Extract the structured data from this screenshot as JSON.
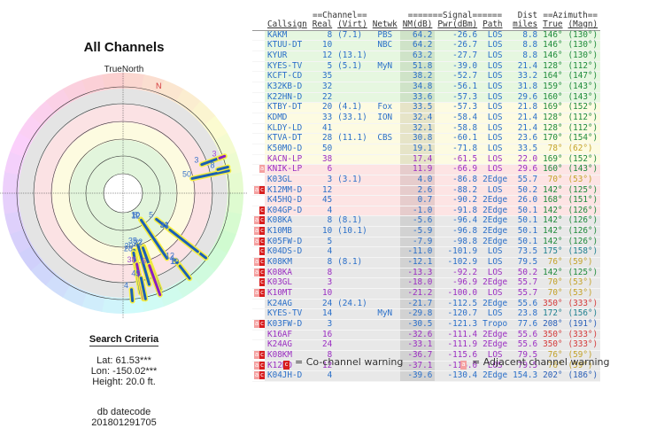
{
  "left": {
    "title": "All Channels",
    "north_label": "TrueNorth",
    "compass_n": "N",
    "criteria_title": "Search Criteria",
    "lat": "Lat: 61.53***",
    "lon": "Lon: -150.02***",
    "height": "Height: 20.0 ft.",
    "datecode_label": "db datecode",
    "datecode": "201801291705"
  },
  "table": {
    "group_headers": {
      "channel": "==Channel==",
      "signal": "=======Signal======",
      "dist": "Dist",
      "azimuth": "==Azimuth=="
    },
    "columns": [
      "Callsign",
      "Real",
      "(Virt)",
      "Netwk",
      "NM(dB)",
      "Pwr(dBm)",
      "Path",
      "miles",
      "True",
      "(Magn)"
    ],
    "rows": [
      {
        "warn": "",
        "band": "green",
        "tc": "blue",
        "callsign": "KAKM",
        "real": "8",
        "virt": "(7.1)",
        "netwk": "PBS",
        "nm": "64.2",
        "pwr": "-26.6",
        "path": "LOS",
        "dist": "8.8",
        "true": "146°",
        "magn": "(130°)",
        "azc": "az-green"
      },
      {
        "warn": "",
        "band": "green",
        "tc": "blue",
        "callsign": "KTUU-DT",
        "real": "10",
        "virt": "",
        "netwk": "NBC",
        "nm": "64.2",
        "pwr": "-26.7",
        "path": "LOS",
        "dist": "8.8",
        "true": "146°",
        "magn": "(130°)",
        "azc": "az-green"
      },
      {
        "warn": "",
        "band": "green",
        "tc": "blue",
        "callsign": "KYUR",
        "real": "12",
        "virt": "(13.1)",
        "netwk": "",
        "nm": "63.2",
        "pwr": "-27.7",
        "path": "LOS",
        "dist": "8.8",
        "true": "146°",
        "magn": "(130°)",
        "azc": "az-green"
      },
      {
        "warn": "",
        "band": "green",
        "tc": "blue",
        "callsign": "KYES-TV",
        "real": "5",
        "virt": "(5.1)",
        "netwk": "MyN",
        "nm": "51.8",
        "pwr": "-39.0",
        "path": "LOS",
        "dist": "21.4",
        "true": "128°",
        "magn": "(112°)",
        "azc": "az-green"
      },
      {
        "warn": "",
        "band": "green",
        "tc": "blue",
        "callsign": "KCFT-CD",
        "real": "35",
        "virt": "",
        "netwk": "",
        "nm": "38.2",
        "pwr": "-52.7",
        "path": "LOS",
        "dist": "33.2",
        "true": "164°",
        "magn": "(147°)",
        "azc": "az-green"
      },
      {
        "warn": "",
        "band": "green",
        "tc": "blue",
        "callsign": "K32KB-D",
        "real": "32",
        "virt": "",
        "netwk": "",
        "nm": "34.8",
        "pwr": "-56.1",
        "path": "LOS",
        "dist": "31.8",
        "true": "159°",
        "magn": "(143°)",
        "azc": "az-green"
      },
      {
        "warn": "",
        "band": "green",
        "tc": "blue",
        "callsign": "K22HN-D",
        "real": "22",
        "virt": "",
        "netwk": "",
        "nm": "33.6",
        "pwr": "-57.3",
        "path": "LOS",
        "dist": "29.6",
        "true": "160°",
        "magn": "(143°)",
        "azc": "az-green"
      },
      {
        "warn": "",
        "band": "yellow",
        "tc": "blue",
        "callsign": "KTBY-DT",
        "real": "20",
        "virt": "(4.1)",
        "netwk": "Fox",
        "nm": "33.5",
        "pwr": "-57.3",
        "path": "LOS",
        "dist": "21.8",
        "true": "169°",
        "magn": "(152°)",
        "azc": "az-green"
      },
      {
        "warn": "",
        "band": "yellow",
        "tc": "blue",
        "callsign": "KDMD",
        "real": "33",
        "virt": "(33.1)",
        "netwk": "ION",
        "nm": "32.4",
        "pwr": "-58.4",
        "path": "LOS",
        "dist": "21.4",
        "true": "128°",
        "magn": "(112°)",
        "azc": "az-green"
      },
      {
        "warn": "",
        "band": "yellow",
        "tc": "blue",
        "callsign": "KLDY-LD",
        "real": "41",
        "virt": "",
        "netwk": "",
        "nm": "32.1",
        "pwr": "-58.8",
        "path": "LOS",
        "dist": "21.4",
        "true": "128°",
        "magn": "(112°)",
        "azc": "az-green"
      },
      {
        "warn": "",
        "band": "yellow",
        "tc": "blue",
        "callsign": "KTVA-DT",
        "real": "28",
        "virt": "(11.1)",
        "netwk": "CBS",
        "nm": "30.8",
        "pwr": "-60.1",
        "path": "LOS",
        "dist": "23.6",
        "true": "170°",
        "magn": "(154°)",
        "azc": "az-green"
      },
      {
        "warn": "",
        "band": "yellow",
        "tc": "blue",
        "callsign": "K50MO-D",
        "real": "50",
        "virt": "",
        "netwk": "",
        "nm": "19.1",
        "pwr": "-71.8",
        "path": "LOS",
        "dist": "33.5",
        "true": "78°",
        "magn": "(62°)",
        "azc": "az-olive"
      },
      {
        "warn": "",
        "band": "yellow",
        "tc": "purple",
        "callsign": "KACN-LP",
        "real": "38",
        "virt": "",
        "netwk": "",
        "nm": "17.4",
        "pwr": "-61.5",
        "path": "LOS",
        "dist": "22.0",
        "true": "169°",
        "magn": "(152°)",
        "azc": "az-green"
      },
      {
        "warn": "a",
        "band": "pink",
        "tc": "purple",
        "callsign": "KNIK-LP",
        "real": "6",
        "virt": "",
        "netwk": "",
        "nm": "11.9",
        "pwr": "-66.9",
        "path": "LOS",
        "dist": "29.6",
        "true": "160°",
        "magn": "(143°)",
        "azc": "az-green"
      },
      {
        "warn": "",
        "band": "pink",
        "tc": "blue",
        "callsign": "K03GL",
        "real": "3",
        "virt": "(3.1)",
        "netwk": "",
        "nm": "4.0",
        "pwr": "-86.8",
        "path": "2Edge",
        "dist": "55.7",
        "true": "70°",
        "magn": "(53°)",
        "azc": "az-olive"
      },
      {
        "warn": "ac",
        "band": "pink",
        "tc": "blue",
        "callsign": "K12MM-D",
        "real": "12",
        "virt": "",
        "netwk": "",
        "nm": "2.6",
        "pwr": "-88.2",
        "path": "LOS",
        "dist": "50.2",
        "true": "142°",
        "magn": "(125°)",
        "azc": "az-green"
      },
      {
        "warn": "",
        "band": "pink",
        "tc": "blue",
        "callsign": "K45HQ-D",
        "real": "45",
        "virt": "",
        "netwk": "",
        "nm": "0.7",
        "pwr": "-90.2",
        "path": "2Edge",
        "dist": "26.0",
        "true": "168°",
        "magn": "(151°)",
        "azc": "az-green"
      },
      {
        "warn": "c",
        "band": "pink",
        "tc": "blue",
        "callsign": "K04GP-D",
        "real": "4",
        "virt": "",
        "netwk": "",
        "nm": "-1.0",
        "pwr": "-91.8",
        "path": "2Edge",
        "dist": "50.1",
        "true": "142°",
        "magn": "(126°)",
        "azc": "az-green"
      },
      {
        "warn": "ac",
        "band": "gray",
        "tc": "blue",
        "callsign": "K08KA",
        "real": "8",
        "virt": "(8.1)",
        "netwk": "",
        "nm": "-5.6",
        "pwr": "-96.4",
        "path": "2Edge",
        "dist": "50.1",
        "true": "142°",
        "magn": "(126°)",
        "azc": "az-green"
      },
      {
        "warn": "ac",
        "band": "gray",
        "tc": "blue",
        "callsign": "K10MB",
        "real": "10",
        "virt": "(10.1)",
        "netwk": "",
        "nm": "-5.9",
        "pwr": "-96.8",
        "path": "2Edge",
        "dist": "50.1",
        "true": "142°",
        "magn": "(126°)",
        "azc": "az-green"
      },
      {
        "warn": "ac",
        "band": "gray",
        "tc": "blue",
        "callsign": "K05FW-D",
        "real": "5",
        "virt": "",
        "netwk": "",
        "nm": "-7.9",
        "pwr": "-98.8",
        "path": "2Edge",
        "dist": "50.1",
        "true": "142°",
        "magn": "(126°)",
        "azc": "az-green"
      },
      {
        "warn": "c",
        "band": "gray",
        "tc": "blue",
        "callsign": "K04DS-D",
        "real": "4",
        "virt": "",
        "netwk": "",
        "nm": "-11.0",
        "pwr": "-101.9",
        "path": "LOS",
        "dist": "73.5",
        "true": "175°",
        "magn": "(158°)",
        "azc": "az-teal"
      },
      {
        "warn": "ac",
        "band": "gray",
        "tc": "blue",
        "callsign": "K08KM",
        "real": "8",
        "virt": "(8.1)",
        "netwk": "",
        "nm": "-12.1",
        "pwr": "-102.9",
        "path": "LOS",
        "dist": "79.5",
        "true": "76°",
        "magn": "(59°)",
        "azc": "az-olive"
      },
      {
        "warn": "ac",
        "band": "gray",
        "tc": "purple",
        "callsign": "K08KA",
        "real": "8",
        "virt": "",
        "netwk": "",
        "nm": "-13.3",
        "pwr": "-92.2",
        "path": "LOS",
        "dist": "50.2",
        "true": "142°",
        "magn": "(125°)",
        "azc": "az-green"
      },
      {
        "warn": "c",
        "band": "gray",
        "tc": "purple",
        "callsign": "K03GL",
        "real": "3",
        "virt": "",
        "netwk": "",
        "nm": "-18.0",
        "pwr": "-96.9",
        "path": "2Edge",
        "dist": "55.7",
        "true": "70°",
        "magn": "(53°)",
        "azc": "az-olive"
      },
      {
        "warn": "ac",
        "band": "gray",
        "tc": "purple",
        "callsign": "K10MT",
        "real": "10",
        "virt": "",
        "netwk": "",
        "nm": "-21.2",
        "pwr": "-100.0",
        "path": "LOS",
        "dist": "55.7",
        "true": "70°",
        "magn": "(53°)",
        "azc": "az-olive"
      },
      {
        "warn": "",
        "band": "gray",
        "tc": "blue",
        "callsign": "K24AG",
        "real": "24",
        "virt": "(24.1)",
        "netwk": "",
        "nm": "-21.7",
        "pwr": "-112.5",
        "path": "2Edge",
        "dist": "55.6",
        "true": "350°",
        "magn": "(333°)",
        "azc": "az-red"
      },
      {
        "warn": "",
        "band": "gray",
        "tc": "blue",
        "callsign": "KYES-TV",
        "real": "14",
        "virt": "",
        "netwk": "MyN",
        "nm": "-29.8",
        "pwr": "-120.7",
        "path": "LOS",
        "dist": "23.8",
        "true": "172°",
        "magn": "(156°)",
        "azc": "az-teal"
      },
      {
        "warn": "ac",
        "band": "gray",
        "tc": "blue",
        "callsign": "K03FW-D",
        "real": "3",
        "virt": "",
        "netwk": "",
        "nm": "-30.5",
        "pwr": "-121.3",
        "path": "Tropo",
        "dist": "77.6",
        "true": "208°",
        "magn": "(191°)",
        "azc": "az-blue"
      },
      {
        "warn": "",
        "band": "gray",
        "tc": "purple",
        "callsign": "K16AF",
        "real": "16",
        "virt": "",
        "netwk": "",
        "nm": "-32.6",
        "pwr": "-111.4",
        "path": "2Edge",
        "dist": "55.6",
        "true": "350°",
        "magn": "(333°)",
        "azc": "az-red"
      },
      {
        "warn": "",
        "band": "gray",
        "tc": "purple",
        "callsign": "K24AG",
        "real": "24",
        "virt": "",
        "netwk": "",
        "nm": "-33.1",
        "pwr": "-111.9",
        "path": "2Edge",
        "dist": "55.6",
        "true": "350°",
        "magn": "(333°)",
        "azc": "az-red"
      },
      {
        "warn": "ac",
        "band": "gray",
        "tc": "purple",
        "callsign": "K08KM",
        "real": "8",
        "virt": "",
        "netwk": "",
        "nm": "-36.7",
        "pwr": "-115.6",
        "path": "LOS",
        "dist": "79.5",
        "true": "76°",
        "magn": "(59°)",
        "azc": "az-olive"
      },
      {
        "warn": "ac",
        "band": "gray",
        "tc": "purple",
        "callsign": "K12NO",
        "real": "12",
        "virt": "",
        "netwk": "",
        "nm": "-37.1",
        "pwr": "-116.0",
        "path": "LOS",
        "dist": "79.5",
        "true": "76°",
        "magn": "(59°)",
        "azc": "az-olive"
      },
      {
        "warn": "ac",
        "band": "gray",
        "tc": "blue",
        "callsign": "K04JH-D",
        "real": "4",
        "virt": "",
        "netwk": "",
        "nm": "-39.6",
        "pwr": "-130.4",
        "path": "2Edge",
        "dist": "154.3",
        "true": "202°",
        "magn": "(186°)",
        "azc": "az-blue"
      }
    ]
  },
  "legend": {
    "co_channel": "= Co-channel warning",
    "adjacent": "= Adjacent channel warning",
    "co_glyph": "c",
    "adj_glyph": "a",
    "co_color": "#d81e1e",
    "adj_color": "#f4a0a0"
  },
  "polar": {
    "stations": [
      {
        "label": "8",
        "az": 146,
        "nm": 64.2,
        "color": "blue"
      },
      {
        "label": "10",
        "az": 146,
        "nm": 64.2,
        "color": "blue"
      },
      {
        "label": "12",
        "az": 146,
        "nm": 63.2,
        "color": "blue"
      },
      {
        "label": "5",
        "az": 128,
        "nm": 51.8,
        "color": "blue"
      },
      {
        "label": "35",
        "az": 164,
        "nm": 38.2,
        "color": "blue"
      },
      {
        "label": "32",
        "az": 159,
        "nm": 34.8,
        "color": "blue"
      },
      {
        "label": "22",
        "az": 160,
        "nm": 33.6,
        "color": "blue"
      },
      {
        "label": "20",
        "az": 169,
        "nm": 33.5,
        "color": "blue"
      },
      {
        "label": "33",
        "az": 128,
        "nm": 32.4,
        "color": "blue"
      },
      {
        "label": "41",
        "az": 128,
        "nm": 32.1,
        "color": "blue"
      },
      {
        "label": "28",
        "az": 170,
        "nm": 30.8,
        "color": "blue"
      },
      {
        "label": "50",
        "az": 78,
        "nm": 19.1,
        "color": "blue"
      },
      {
        "label": "38",
        "az": 169,
        "nm": 17.4,
        "color": "purple"
      },
      {
        "label": "6",
        "az": 160,
        "nm": 11.9,
        "color": "purple"
      },
      {
        "label": "3",
        "az": 70,
        "nm": 4.0,
        "color": "blue"
      },
      {
        "label": "12",
        "az": 142,
        "nm": 2.6,
        "color": "blue"
      },
      {
        "label": "45",
        "az": 168,
        "nm": 0.7,
        "color": "blue"
      },
      {
        "label": "4",
        "az": 142,
        "nm": -1.0,
        "color": "blue"
      },
      {
        "label": "8",
        "az": 142,
        "nm": -5.6,
        "color": "blue"
      },
      {
        "label": "10",
        "az": 142,
        "nm": -5.9,
        "color": "blue"
      },
      {
        "label": "8",
        "az": 76,
        "nm": -12.1,
        "color": "blue"
      },
      {
        "label": "3",
        "az": 70,
        "nm": -18.0,
        "color": "purple"
      },
      {
        "label": "4",
        "az": 175,
        "nm": -11.0,
        "color": "blue"
      }
    ]
  }
}
